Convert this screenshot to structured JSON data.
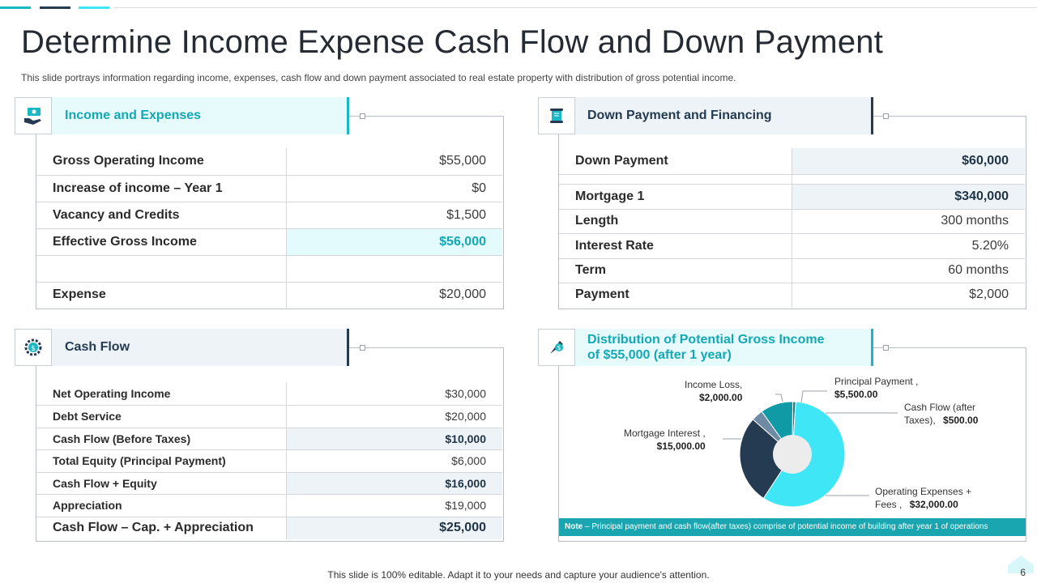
{
  "title": "Determine Income Expense Cash Flow and Down Payment",
  "subtitle": "This slide portrays information regarding income, expenses, cash flow and down payment associated to real estate property with distribution of gross potential income.",
  "colors": {
    "cyan": "#19b8c4",
    "navy": "#243b52",
    "light_cyan": "#3fe6f5",
    "slate": "#6f8aa3"
  },
  "income": {
    "header": "Income and Expenses",
    "icon": "hand-money-icon",
    "rows": [
      {
        "label": "Gross Operating Income",
        "value": "$55,000"
      },
      {
        "label": "Increase of income – Year 1",
        "value": "$0"
      },
      {
        "label": "Vacancy and Credits",
        "value": "$1,500"
      },
      {
        "label": "Effective Gross Income",
        "value": "$56,000"
      },
      {
        "label": "",
        "value": ""
      },
      {
        "label": "Expense",
        "value": "$20,000"
      }
    ]
  },
  "down": {
    "header": "Down Payment and Financing",
    "icon": "scroll-icon",
    "rows": [
      {
        "label": "Down Payment",
        "value": "$60,000"
      },
      {
        "label": "",
        "value": ""
      },
      {
        "label": "Mortgage 1",
        "value": "$340,000"
      },
      {
        "label": "Length",
        "value": "300 months"
      },
      {
        "label": "Interest Rate",
        "value": "5.20%"
      },
      {
        "label": "Term",
        "value": "60 months"
      },
      {
        "label": "Payment",
        "value": "$2,000"
      }
    ]
  },
  "cashflow": {
    "header": "Cash Flow",
    "icon": "gear-dollar-icon",
    "rows": [
      {
        "label": "Net Operating Income",
        "value": "$30,000"
      },
      {
        "label": "Debt Service",
        "value": "$20,000"
      },
      {
        "label": "Cash Flow (Before Taxes)",
        "value": "$10,000"
      },
      {
        "label": "Total Equity (Principal Payment)",
        "value": "$6,000"
      },
      {
        "label": "Cash Flow + Equity",
        "value": "$16,000"
      },
      {
        "label": "Appreciation",
        "value": "$19,000"
      },
      {
        "label": "Cash Flow – Cap. + Appreciation",
        "value": "$25,000"
      }
    ]
  },
  "distribution": {
    "header": "Distribution of Potential Gross Income of $55,000 (after 1 year)",
    "icon": "money-rocket-icon",
    "note_bold": "Note",
    "note": " – Principal payment and cash flow(after taxes) comprise of potential income of building after year 1 of operations",
    "labels": {
      "income_loss": "Income Loss,",
      "income_loss_val": "$2,000.00",
      "principal": "Principal Payment ,",
      "principal_val": "$5,500.00",
      "cashflow": "Cash Flow (after",
      "cashflow2": "Taxes),",
      "cashflow_val": "$500.00",
      "mortgage": "Mortgage Interest ,",
      "mortgage_val": "$15,000.00",
      "opex": "Operating Expenses +",
      "opex2": "Fees ,",
      "opex_val": "$32,000.00"
    }
  },
  "chart_data": {
    "type": "pie",
    "donut": true,
    "title": "Distribution of Potential Gross Income of $55,000 (after 1 year)",
    "series": [
      {
        "name": "Income Loss",
        "value": 2000,
        "color": "#6f8aa3"
      },
      {
        "name": "Principal Payment",
        "value": 5500,
        "color": "#0f9aa6"
      },
      {
        "name": "Cash Flow (after Taxes)",
        "value": 500,
        "color": "#1e7f8c"
      },
      {
        "name": "Operating Expenses + Fees",
        "value": 32000,
        "color": "#3fe6f5"
      },
      {
        "name": "Mortgage Interest",
        "value": 15000,
        "color": "#243b52"
      }
    ]
  },
  "footer": "This slide is 100% editable. Adapt it to your needs and capture your audience's attention.",
  "page_number": "6"
}
